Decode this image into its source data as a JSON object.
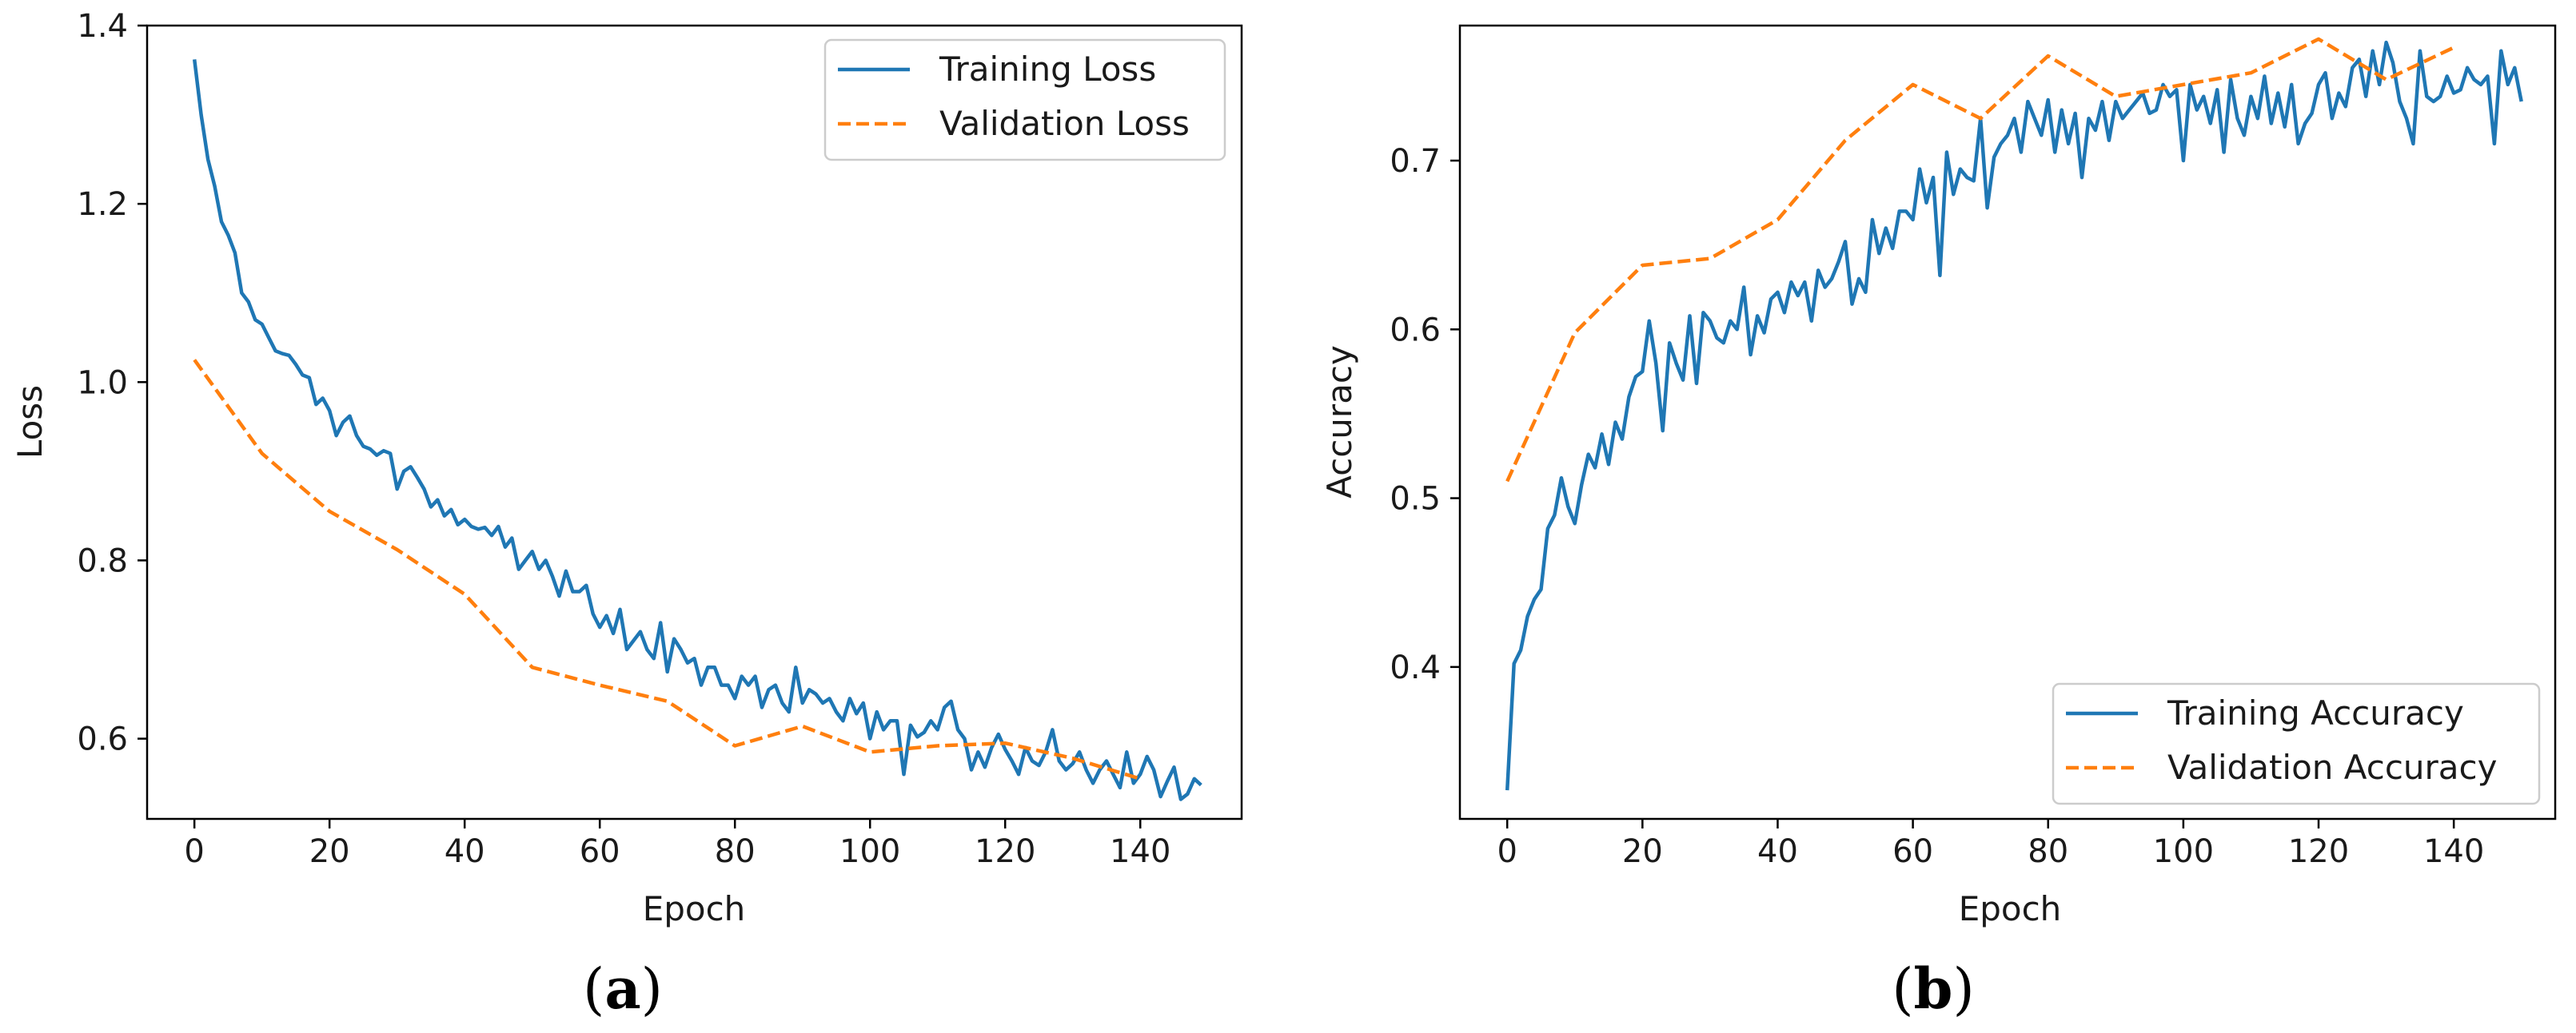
{
  "colors": {
    "training": "#1f77b4",
    "validation": "#ff7f0e",
    "axis": "#000000",
    "text": "#1a1a1a"
  },
  "chart_data": [
    {
      "type": "line",
      "panel_label": "a",
      "title": "",
      "xlabel": "Epoch",
      "ylabel": "Loss",
      "xlim": [
        -7,
        155
      ],
      "ylim": [
        0.51,
        1.4
      ],
      "xticks": [
        0,
        20,
        40,
        60,
        80,
        100,
        120,
        140
      ],
      "yticks": [
        0.6,
        0.8,
        1.0,
        1.2,
        1.4
      ],
      "ytick_labels": [
        "0.6",
        "0.8",
        "1.0",
        "1.2",
        "1.4"
      ],
      "grid": false,
      "legend_position": "top-right",
      "series": [
        {
          "name": "Training Loss",
          "style": "solid",
          "x_start": 0,
          "x_step": 1,
          "values": [
            1.362,
            1.3,
            1.25,
            1.22,
            1.18,
            1.165,
            1.145,
            1.1,
            1.09,
            1.07,
            1.065,
            1.05,
            1.035,
            1.032,
            1.03,
            1.02,
            1.008,
            1.005,
            0.975,
            0.982,
            0.968,
            0.94,
            0.955,
            0.962,
            0.94,
            0.928,
            0.925,
            0.918,
            0.923,
            0.92,
            0.88,
            0.9,
            0.905,
            0.893,
            0.88,
            0.86,
            0.868,
            0.85,
            0.857,
            0.84,
            0.846,
            0.838,
            0.835,
            0.837,
            0.828,
            0.838,
            0.815,
            0.825,
            0.79,
            0.8,
            0.81,
            0.79,
            0.8,
            0.782,
            0.76,
            0.788,
            0.765,
            0.765,
            0.772,
            0.74,
            0.725,
            0.738,
            0.718,
            0.745,
            0.7,
            0.71,
            0.72,
            0.7,
            0.69,
            0.73,
            0.675,
            0.712,
            0.7,
            0.685,
            0.69,
            0.66,
            0.68,
            0.68,
            0.66,
            0.66,
            0.645,
            0.67,
            0.66,
            0.67,
            0.635,
            0.655,
            0.66,
            0.64,
            0.63,
            0.68,
            0.64,
            0.655,
            0.65,
            0.64,
            0.645,
            0.63,
            0.62,
            0.645,
            0.628,
            0.64,
            0.6,
            0.63,
            0.61,
            0.62,
            0.62,
            0.56,
            0.615,
            0.602,
            0.607,
            0.62,
            0.61,
            0.635,
            0.642,
            0.61,
            0.6,
            0.565,
            0.585,
            0.568,
            0.59,
            0.605,
            0.588,
            0.575,
            0.56,
            0.59,
            0.575,
            0.57,
            0.585,
            0.61,
            0.575,
            0.565,
            0.572,
            0.585,
            0.565,
            0.55,
            0.565,
            0.575,
            0.56,
            0.545,
            0.585,
            0.55,
            0.56,
            0.58,
            0.565,
            0.535,
            0.552,
            0.568,
            0.532,
            0.538,
            0.555,
            0.548
          ]
        },
        {
          "name": "Validation Loss",
          "style": "dashed",
          "x": [
            0,
            10,
            20,
            30,
            40,
            50,
            60,
            70,
            80,
            90,
            100,
            110,
            120,
            130,
            140
          ],
          "values": [
            1.025,
            0.92,
            0.855,
            0.812,
            0.762,
            0.68,
            0.66,
            0.642,
            0.592,
            0.614,
            0.585,
            0.592,
            0.595,
            0.578,
            0.555
          ]
        }
      ]
    },
    {
      "type": "line",
      "panel_label": "b",
      "title": "",
      "xlabel": "Epoch",
      "ylabel": "Accuracy",
      "xlim": [
        -7,
        155
      ],
      "ylim": [
        0.31,
        0.78
      ],
      "xticks": [
        0,
        20,
        40,
        60,
        80,
        100,
        120,
        140
      ],
      "yticks": [
        0.4,
        0.5,
        0.6,
        0.7
      ],
      "ytick_labels": [
        "0.4",
        "0.5",
        "0.6",
        "0.7"
      ],
      "grid": false,
      "legend_position": "bottom-right",
      "series": [
        {
          "name": "Training Accuracy",
          "style": "solid",
          "x_start": 0,
          "x_step": 1,
          "values": [
            0.327,
            0.402,
            0.41,
            0.43,
            0.44,
            0.446,
            0.482,
            0.49,
            0.512,
            0.495,
            0.485,
            0.508,
            0.526,
            0.518,
            0.538,
            0.52,
            0.545,
            0.535,
            0.56,
            0.572,
            0.575,
            0.605,
            0.58,
            0.54,
            0.592,
            0.58,
            0.57,
            0.608,
            0.568,
            0.61,
            0.605,
            0.595,
            0.592,
            0.605,
            0.6,
            0.625,
            0.585,
            0.608,
            0.598,
            0.618,
            0.622,
            0.61,
            0.628,
            0.62,
            0.628,
            0.605,
            0.635,
            0.625,
            0.63,
            0.64,
            0.652,
            0.615,
            0.63,
            0.622,
            0.665,
            0.645,
            0.66,
            0.648,
            0.67,
            0.67,
            0.665,
            0.695,
            0.675,
            0.69,
            0.632,
            0.705,
            0.68,
            0.695,
            0.69,
            0.688,
            0.725,
            0.672,
            0.702,
            0.71,
            0.715,
            0.725,
            0.705,
            0.735,
            0.725,
            0.715,
            0.736,
            0.705,
            0.73,
            0.71,
            0.728,
            0.69,
            0.725,
            0.718,
            0.735,
            0.712,
            0.735,
            0.725,
            0.73,
            0.735,
            0.74,
            0.728,
            0.73,
            0.745,
            0.738,
            0.742,
            0.7,
            0.745,
            0.73,
            0.738,
            0.722,
            0.742,
            0.705,
            0.748,
            0.725,
            0.715,
            0.738,
            0.725,
            0.75,
            0.722,
            0.74,
            0.72,
            0.745,
            0.71,
            0.722,
            0.728,
            0.745,
            0.752,
            0.725,
            0.74,
            0.732,
            0.755,
            0.76,
            0.738,
            0.765,
            0.745,
            0.77,
            0.758,
            0.735,
            0.725,
            0.71,
            0.765,
            0.738,
            0.735,
            0.738,
            0.75,
            0.74,
            0.742,
            0.755,
            0.748,
            0.745,
            0.75,
            0.71,
            0.765,
            0.745,
            0.755,
            0.735
          ]
        },
        {
          "name": "Validation Accuracy",
          "style": "dashed",
          "x": [
            0,
            10,
            20,
            30,
            40,
            50,
            60,
            70,
            80,
            90,
            100,
            110,
            120,
            130,
            140
          ],
          "values": [
            0.51,
            0.598,
            0.638,
            0.642,
            0.665,
            0.712,
            0.745,
            0.725,
            0.762,
            0.738,
            0.745,
            0.752,
            0.772,
            0.748,
            0.767
          ]
        }
      ]
    }
  ]
}
